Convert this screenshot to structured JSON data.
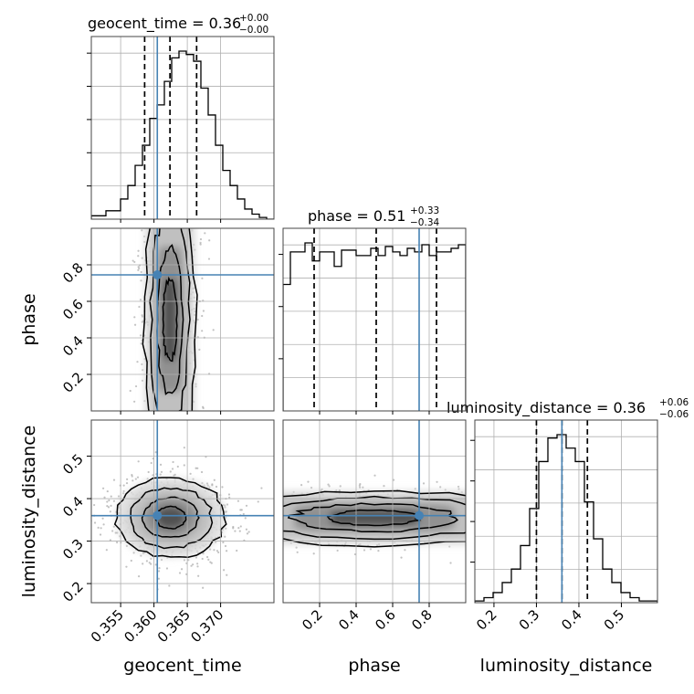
{
  "chart_data": {
    "type": "corner",
    "parameters": [
      "geocent_time",
      "phase",
      "luminosity_distance"
    ],
    "titles": {
      "geocent_time": {
        "label": "geocent_time = 0.36",
        "plus": "+0.00",
        "minus": "−0.00"
      },
      "phase": {
        "label": "phase = 0.51",
        "plus": "+0.33",
        "minus": "−0.34"
      },
      "luminosity_distance": {
        "label": "luminosity_distance = 0.36",
        "plus": "+0.06",
        "minus": "−0.06"
      }
    },
    "axis_labels": {
      "x": [
        "geocent_time",
        "phase",
        "luminosity_distance"
      ],
      "y": [
        "phase",
        "luminosity_distance"
      ]
    },
    "ranges": {
      "geocent_time": [
        0.3506,
        0.378
      ],
      "phase": [
        0.0,
        1.0
      ],
      "luminosity_distance": [
        0.155,
        0.585
      ]
    },
    "ticks": {
      "geocent_time": [
        "0.355",
        "0.360",
        "0.365",
        "0.370"
      ],
      "phase": [
        "0.2",
        "0.4",
        "0.6",
        "0.8"
      ],
      "luminosity_distance": [
        "0.2",
        "0.3",
        "0.4",
        "0.5"
      ]
    },
    "truths": {
      "geocent_time": 0.3605,
      "phase": 0.745,
      "luminosity_distance": 0.36
    },
    "quantiles": {
      "geocent_time": [
        0.3586,
        0.3624,
        0.3664
      ],
      "phase": [
        0.17,
        0.51,
        0.84
      ],
      "luminosity_distance": [
        0.3,
        0.36,
        0.42
      ]
    },
    "histograms": {
      "geocent_time": [
        0.02,
        0.02,
        0.05,
        0.05,
        0.12,
        0.2,
        0.32,
        0.44,
        0.6,
        0.68,
        0.82,
        0.96,
        1.0,
        0.98,
        0.94,
        0.78,
        0.62,
        0.44,
        0.29,
        0.2,
        0.12,
        0.06,
        0.03,
        0.01,
        0.0
      ],
      "phase": [
        0.7,
        0.88,
        0.88,
        0.93,
        0.83,
        0.88,
        0.88,
        0.8,
        0.89,
        0.89,
        0.86,
        0.86,
        0.9,
        0.86,
        0.91,
        0.88,
        0.86,
        0.9,
        0.88,
        0.92,
        0.86,
        0.88,
        0.88,
        0.9,
        0.92
      ],
      "luminosity_distance": [
        0.01,
        0.03,
        0.06,
        0.12,
        0.2,
        0.34,
        0.56,
        0.84,
        0.98,
        1.0,
        0.92,
        0.84,
        0.6,
        0.38,
        0.2,
        0.12,
        0.06,
        0.03,
        0.01,
        0.01
      ]
    },
    "grid": true,
    "truth_color": "#4682b4",
    "line_color": "#000000"
  }
}
